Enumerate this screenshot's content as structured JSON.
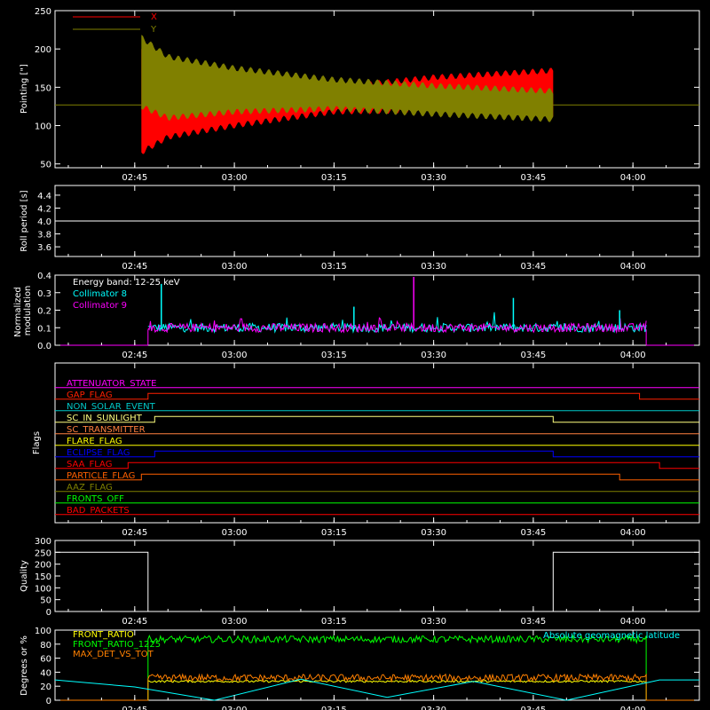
{
  "chart_data": [
    {
      "id": "pointing",
      "type": "line",
      "ylabel": "Pointing [\"]",
      "ylim": [
        45,
        250
      ],
      "yticks": [
        50,
        100,
        150,
        200,
        250
      ],
      "legend": {
        "placement": "top-left",
        "items": [
          {
            "name": "X",
            "color": "#ff0000"
          },
          {
            "name": "Y",
            "color": "#808000"
          }
        ]
      },
      "time_ticks": [
        "02:45",
        "03:00",
        "03:15",
        "03:30",
        "03:45",
        "04:00"
      ],
      "baseline": 127,
      "burst_start": "02:46",
      "burst_end": "03:48",
      "series": [
        {
          "name": "X",
          "color": "#ff0000",
          "envelope": {
            "time": [
              "02:46",
              "02:50",
              "03:00",
              "03:15",
              "03:30",
              "03:48"
            ],
            "lower": [
              65,
              85,
              100,
              118,
              120,
              112
            ],
            "upper": [
              200,
              175,
              158,
              150,
              163,
              172
            ]
          }
        },
        {
          "name": "Y",
          "color": "#808000",
          "envelope": {
            "time": [
              "02:46",
              "02:50",
              "03:00",
              "03:15",
              "03:30",
              "03:48"
            ],
            "lower": [
              125,
              110,
              118,
              122,
              115,
              108
            ],
            "upper": [
              215,
              190,
              175,
              160,
              152,
              145
            ]
          }
        }
      ]
    },
    {
      "id": "roll",
      "type": "line",
      "ylabel": "Roll period [s]",
      "ylim": [
        3.45,
        4.55
      ],
      "yticks": [
        3.6,
        3.8,
        4.0,
        4.2,
        4.4
      ],
      "time_ticks": [
        "02:45",
        "03:00",
        "03:15",
        "03:30",
        "03:45",
        "04:00"
      ],
      "series": [
        {
          "name": "",
          "color": "#ffffff",
          "constant": 4.0
        }
      ]
    },
    {
      "id": "modulation",
      "type": "line",
      "ylabel": "Normalized modulation",
      "ylim": [
        0.0,
        0.4
      ],
      "yticks": [
        0.0,
        0.1,
        0.2,
        0.3,
        0.4
      ],
      "time_ticks": [
        "02:45",
        "03:00",
        "03:15",
        "03:30",
        "03:45",
        "04:00"
      ],
      "legend": {
        "placement": "top-left",
        "items": [
          {
            "name": "Energy band: 12-25 keV",
            "color": "#ffffff"
          },
          {
            "name": "Collimator 8",
            "color": "#00ffff"
          },
          {
            "name": "Collimator 9",
            "color": "#ff00ff"
          }
        ]
      },
      "active_start": "02:47",
      "active_end": "04:02",
      "mean": 0.09,
      "spikes": [
        {
          "time": "02:49",
          "value": 0.35,
          "color": "#00ffff"
        },
        {
          "time": "03:27",
          "value": 0.39,
          "color": "#ff00ff"
        },
        {
          "time": "03:42",
          "value": 0.27,
          "color": "#00ffff"
        },
        {
          "time": "03:18",
          "value": 0.22,
          "color": "#00ffff"
        },
        {
          "time": "03:58",
          "value": 0.2,
          "color": "#00ffff"
        }
      ]
    },
    {
      "id": "flags",
      "type": "line",
      "ylabel": "Flags",
      "time_ticks": [
        "02:45",
        "03:00",
        "03:15",
        "03:30",
        "03:45",
        "04:00"
      ],
      "flags": [
        {
          "name": "ATTENUATOR_STATE",
          "color": "#ff00ff",
          "transitions": []
        },
        {
          "name": "GAP_FLAG",
          "color": "#ff2000",
          "transitions": [
            "02:47",
            "04:01"
          ]
        },
        {
          "name": "NON_SOLAR_EVENT",
          "color": "#00c8c8",
          "transitions": []
        },
        {
          "name": "SC_IN_SUNLIGHT",
          "color": "#ffff80",
          "transitions": [
            "02:48",
            "03:48"
          ]
        },
        {
          "name": "SC_TRANSMITTER",
          "color": "#ff8040",
          "transitions": []
        },
        {
          "name": "FLARE_FLAG",
          "color": "#ffff00",
          "transitions": []
        },
        {
          "name": "ECLIPSE_FLAG",
          "color": "#0000ff",
          "transitions": [
            "02:48",
            "03:48"
          ]
        },
        {
          "name": "SAA_FLAG",
          "color": "#ff0000",
          "transitions": [
            "02:44",
            "04:04"
          ]
        },
        {
          "name": "PARTICLE_FLAG",
          "color": "#ff6000",
          "transitions": [
            "02:46",
            "03:58"
          ]
        },
        {
          "name": "AAZ_FLAG",
          "color": "#808000",
          "transitions": []
        },
        {
          "name": "FRONTS_OFF",
          "color": "#00ff00",
          "transitions": []
        },
        {
          "name": "BAD_PACKETS",
          "color": "#ff0000",
          "transitions": []
        }
      ]
    },
    {
      "id": "quality",
      "type": "line",
      "ylabel": "Quality",
      "ylim": [
        0,
        300
      ],
      "yticks": [
        0,
        50,
        100,
        150,
        200,
        250,
        300
      ],
      "time_ticks": [
        "02:45",
        "03:00",
        "03:15",
        "03:30",
        "03:45",
        "04:00"
      ],
      "series": [
        {
          "name": "",
          "color": "#ffffff",
          "segments": [
            {
              "from": "02:33",
              "to": "02:47",
              "value": 250
            },
            {
              "from": "02:47",
              "to": "03:48",
              "value": 0
            },
            {
              "from": "03:48",
              "to": "04:10",
              "value": 250
            }
          ]
        }
      ]
    },
    {
      "id": "ratios",
      "type": "line",
      "ylabel": "Degrees or %",
      "ylim": [
        0,
        100
      ],
      "yticks": [
        0,
        20,
        40,
        60,
        80,
        100
      ],
      "time_ticks": [
        "02:45",
        "03:00",
        "03:15",
        "03:30",
        "03:45",
        "04:00"
      ],
      "legend": {
        "placement": "top-left",
        "items": [
          {
            "name": "FRONT_RATIO",
            "color": "#ffff00"
          },
          {
            "name": "FRONT_RATIO_1225",
            "color": "#00ff00"
          },
          {
            "name": "MAX_DET_VS_TOT",
            "color": "#ff8000"
          }
        ]
      },
      "annotation": {
        "text": "Absolute geomagnetic latitude",
        "color": "#00ffff"
      },
      "series": [
        {
          "name": "FRONT_RATIO",
          "color": "#ffff00",
          "from": "02:47",
          "to": "04:02",
          "mean": 27
        },
        {
          "name": "FRONT_RATIO_1225",
          "color": "#00ff00",
          "from": "02:47",
          "to": "04:02",
          "mean": 87
        },
        {
          "name": "MAX_DET_VS_TOT",
          "color": "#ff8000",
          "from": "02:47",
          "to": "04:02",
          "mean": 32
        },
        {
          "name": "Absolute geomagnetic latitude",
          "color": "#00ffff",
          "curve": {
            "time": [
              "02:33",
              "02:45",
              "02:57",
              "03:10",
              "03:23",
              "03:36",
              "03:50",
              "04:04",
              "04:10"
            ],
            "value": [
              29,
              19,
              0,
              30,
              4,
              27,
              0,
              29,
              29
            ]
          }
        }
      ]
    }
  ]
}
